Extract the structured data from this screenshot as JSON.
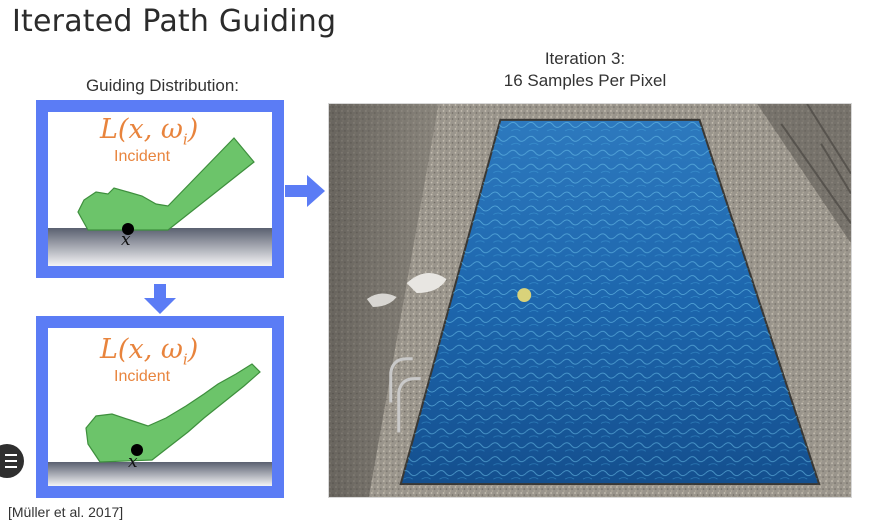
{
  "slide": {
    "title": "Iterated Path Guiding",
    "guiding_caption": "Guiding Distribution:",
    "iteration_caption_line1": "Iteration 3:",
    "iteration_caption_line2": "16 Samples Per Pixel",
    "citation": "[Müller et al. 2017]"
  },
  "panels": [
    {
      "radiance_main": "L(x, ω",
      "radiance_sub": "i",
      "radiance_close": ")",
      "incident": "Incident",
      "point": "x"
    },
    {
      "radiance_main": "L(x, ω",
      "radiance_sub": "i",
      "radiance_close": ")",
      "incident": "Incident",
      "point": "x"
    }
  ],
  "colors": {
    "accent_blue": "#5b7cf5",
    "lobe_green": "#6cc46a",
    "label_orange": "#e8843d",
    "pool_water": "#1b5fa3"
  },
  "icons": {
    "arrow_right": "arrow-right-icon",
    "arrow_down": "arrow-down-icon",
    "menu": "menu-icon"
  }
}
